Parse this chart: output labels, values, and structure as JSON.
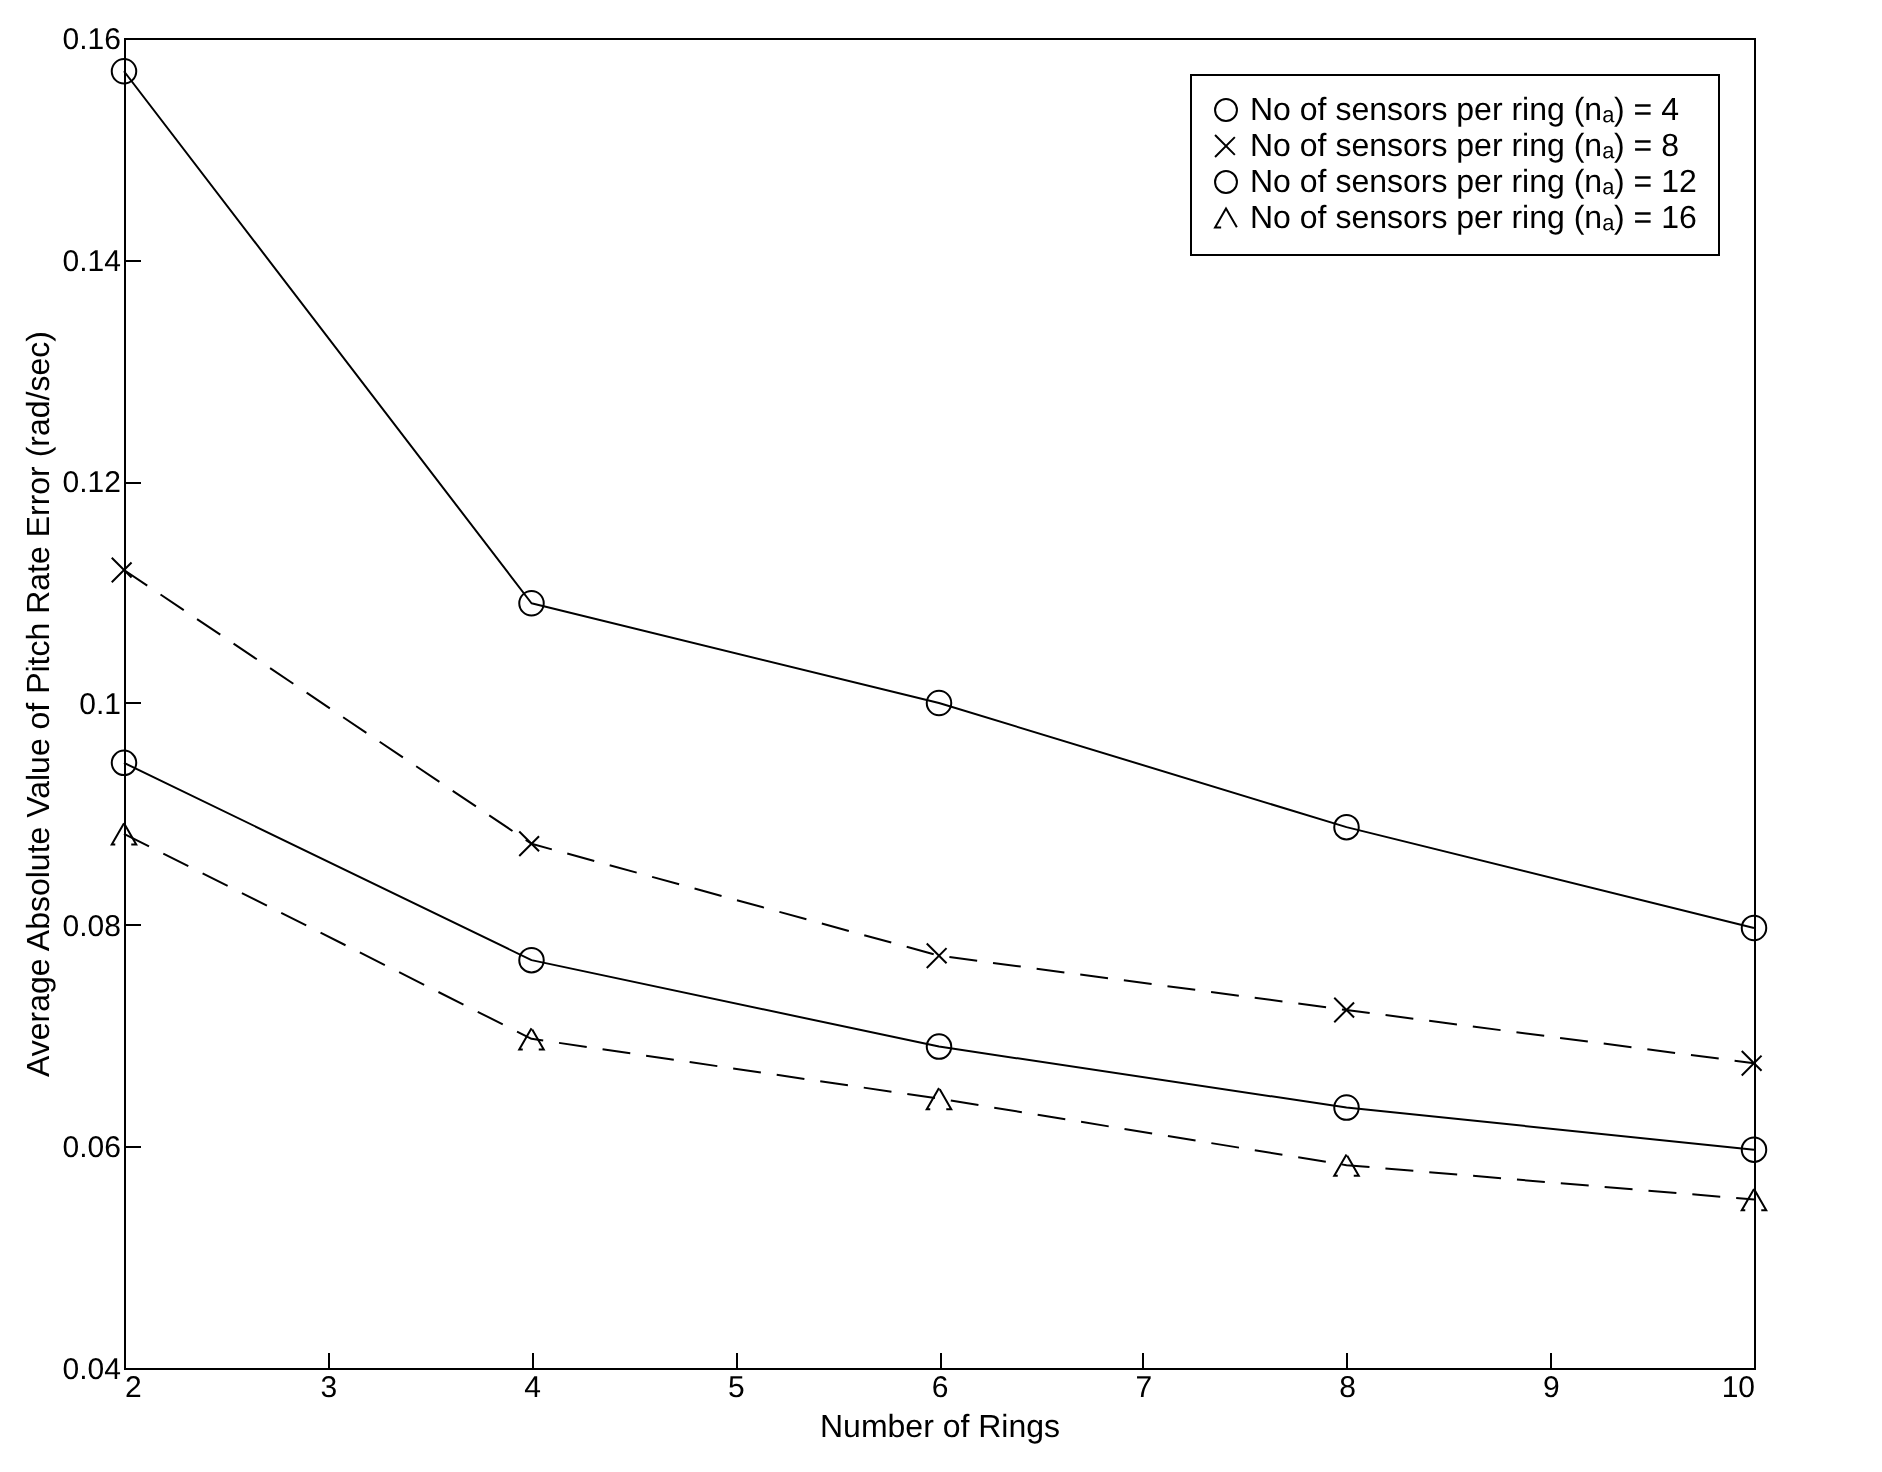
{
  "chart_data": {
    "type": "line",
    "xlabel": "Number of Rings",
    "ylabel": "Average Absolute Value of Pitch Rate Error (rad/sec)",
    "x": [
      2,
      4,
      6,
      8,
      10
    ],
    "series": [
      {
        "name": "No of sensors per ring (nₐ) =  4",
        "color": "#000000",
        "marker": "circle",
        "line_style": "solid",
        "values": [
          0.157,
          0.109,
          0.1,
          0.0888,
          0.0797
        ]
      },
      {
        "name": "No of sensors per ring (nₐ) =  8",
        "color": "#000000",
        "marker": "cross",
        "line_style": "dashed",
        "values": [
          0.112,
          0.0873,
          0.0772,
          0.0723,
          0.0675
        ]
      },
      {
        "name": "No of sensors per ring (nₐ) = 12",
        "color": "#000000",
        "marker": "circle",
        "line_style": "solid",
        "values": [
          0.0946,
          0.0768,
          0.069,
          0.0635,
          0.0597
        ]
      },
      {
        "name": "No of sensors per ring (nₐ) = 16",
        "color": "#000000",
        "marker": "triangle",
        "line_style": "dashed",
        "values": [
          0.0882,
          0.0697,
          0.0643,
          0.0583,
          0.0552
        ]
      }
    ],
    "xlim": [
      2,
      10
    ],
    "xticks": [
      2,
      3,
      4,
      5,
      6,
      7,
      8,
      9,
      10
    ],
    "ylim": [
      0.04,
      0.16
    ],
    "yticks": [
      0.04,
      0.06,
      0.08,
      0.1,
      0.12,
      0.14,
      0.16
    ],
    "legend": "top right"
  }
}
